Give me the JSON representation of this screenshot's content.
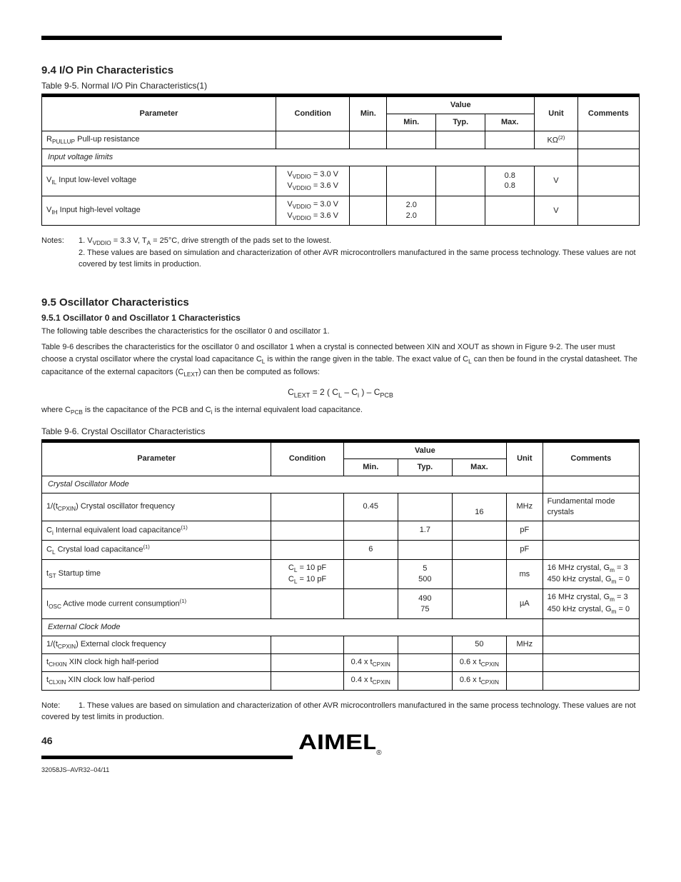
{
  "page": {
    "number": "46",
    "docnum": "32058JS–AVR32–04/11"
  },
  "section_a": {
    "heading": "9.4 I/O Pin Characteristics",
    "caption": "Table 9-5. Normal I/O Pin Characteristics(1)",
    "headers": {
      "param": "Parameter",
      "cond": "Condition",
      "min": "Min.",
      "val": "Value",
      "typ": "Typ.",
      "max": "Max.",
      "unit": "Unit",
      "comm": "Comments"
    },
    "rows": [
      {
        "param": "R<sub>PULLUP</sub> Pull-up resistance",
        "cond": "",
        "min": "",
        "typ": "",
        "max": "",
        "unit": "KΩ<sup>(2)</sup>",
        "comm": ""
      },
      {
        "param": "Input voltage limits",
        "colspan": true,
        "comm": ""
      },
      {
        "param": "V<sub>IL</sub> Input low-level voltage",
        "cond": "V<sub>VDDIO</sub> = 3.0 V<br>V<sub>VDDIO</sub> = 3.6 V",
        "min": "",
        "typ": "",
        "max": "0.8<br>0.8",
        "unit": "V",
        "comm": ""
      },
      {
        "param": "V<sub>IH</sub> Input high-level voltage",
        "cond": "V<sub>VDDIO</sub> = 3.0 V<br>V<sub>VDDIO</sub> = 3.6 V",
        "min": "2.0<br>2.0",
        "typ": "",
        "max": "",
        "unit": "V",
        "comm": ""
      }
    ],
    "notes": [
      "1. V<sub>VDDIO</sub> = 3.3 V, T<sub>A</sub> = 25°C, drive strength of the pads set to the lowest.",
      "2. These values are based on simulation and characterization of other AVR microcontrollers manufactured in the same process technology. These values are not covered by test limits in production."
    ]
  },
  "section_b": {
    "heading": "9.5 Oscillator Characteristics",
    "subheading": "9.5.1 Oscillator 0 and Oscillator 1 Characteristics",
    "intro_1": "The following table describes the characteristics for the oscillator 0 and oscillator 1.",
    "intro_2": "Table 9-6 describes the characteristics for the oscillator 0 and oscillator 1 when a crystal is connected between XIN and XOUT as shown in Figure 9-2. The user must choose a crystal oscillator where the crystal load capacitance C<sub>L</sub> is within the range given in the table. The exact value of C<sub>L</sub> can then be found in the crystal datasheet. The capacitance of the external capacitors (C<sub>LEXT</sub>) can then be computed as follows:",
    "formula": "C<sub>LEXT</sub> = 2 ( C<sub>L</sub> – C<sub>i</sub> ) – C<sub>PCB</sub>",
    "intro_3": "where C<sub>PCB</sub> is the capacitance of the PCB and C<sub>i</sub> is the internal equivalent load capacitance.",
    "caption": "Table 9-6. Crystal Oscillator Characteristics",
    "rows": [
      {
        "section": "Crystal Oscillator Mode"
      },
      {
        "param": "1/(t<sub>CPXIN</sub>) Crystal oscillator frequency",
        "cond": "",
        "min": "0.45<br>",
        "typ": "",
        "max": "<br>16",
        "unit": "MHz",
        "comm": "Fundamental mode crystals"
      },
      {
        "param": "C<sub>i</sub> Internal equivalent load capacitance<sup>(1)</sup>",
        "cond": "",
        "min": "",
        "typ": "1.7",
        "max": "",
        "unit": "pF",
        "comm": ""
      },
      {
        "param": "C<sub>L</sub> Crystal load capacitance<sup>(1)</sup>",
        "cond": "",
        "min": "6",
        "typ": "",
        "max": "",
        "unit": "pF",
        "comm": ""
      },
      {
        "param": "t<sub>ST</sub> Startup time",
        "cond": "C<sub>L</sub> = 10 pF<br>C<sub>L</sub> = 10 pF",
        "min": "",
        "typ": "5<br>500",
        "max": "",
        "unit": "ms",
        "comm": "16 MHz crystal, G<sub>m</sub> = 3<br>450 kHz crystal, G<sub>m</sub> = 0"
      },
      {
        "param": "I<sub>OSC</sub> Active mode current consumption<sup>(1)</sup>",
        "cond": "",
        "min": "",
        "typ": "490<br>75",
        "max": "",
        "unit": "µA",
        "comm": "16 MHz crystal, G<sub>m</sub> = 3<br>450 kHz crystal, G<sub>m</sub> = 0"
      },
      {
        "section": "External Clock Mode"
      },
      {
        "param": "1/(t<sub>CPXIN</sub>) External clock frequency",
        "cond": "",
        "min": "",
        "typ": "",
        "max": "50",
        "unit": "MHz",
        "comm": ""
      },
      {
        "param": "t<sub>CHXIN</sub> XIN clock high half-period",
        "cond": "",
        "min": "0.4 x t<sub>CPXIN</sub>",
        "typ": "",
        "max": "0.6 x t<sub>CPXIN</sub>",
        "unit": "",
        "comm": ""
      },
      {
        "param": "t<sub>CLXIN</sub> XIN clock low half-period",
        "cond": "",
        "min": "0.4 x t<sub>CPXIN</sub>",
        "typ": "",
        "max": "0.6 x t<sub>CPXIN</sub>",
        "unit": "",
        "comm": ""
      }
    ],
    "table_note": "1. These values are based on simulation and characterization of other AVR microcontrollers manufactured in the same process technology. These values are not covered by test limits in production."
  }
}
